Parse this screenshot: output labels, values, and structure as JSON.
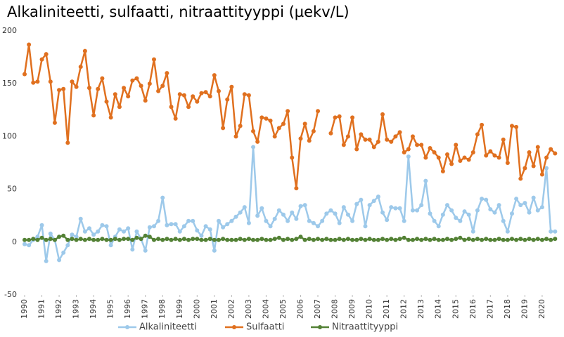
{
  "chart_data": {
    "type": "line",
    "title": "Alkaliniteetti, sulfaatti, nitraattityyppi (µekv/L)",
    "x": [
      1990,
      1990.25,
      1990.5,
      1990.75,
      1991,
      1991.25,
      1991.5,
      1991.75,
      1992,
      1992.25,
      1992.5,
      1992.75,
      1993,
      1993.25,
      1993.5,
      1993.75,
      1994,
      1994.25,
      1994.5,
      1994.75,
      1995,
      1995.25,
      1995.5,
      1995.75,
      1996,
      1996.25,
      1996.5,
      1996.75,
      1997,
      1997.25,
      1997.5,
      1997.75,
      1998,
      1998.25,
      1998.5,
      1998.75,
      1999,
      1999.25,
      1999.5,
      1999.75,
      2000,
      2000.25,
      2000.5,
      2000.75,
      2001,
      2001.25,
      2001.5,
      2001.75,
      2002,
      2002.25,
      2002.5,
      2002.75,
      2003,
      2003.25,
      2003.5,
      2003.75,
      2004,
      2004.25,
      2004.5,
      2004.75,
      2005,
      2005.25,
      2005.5,
      2005.75,
      2006,
      2006.25,
      2006.5,
      2006.75,
      2007,
      2007.25,
      2007.5,
      2007.75,
      2008,
      2008.25,
      2008.5,
      2008.75,
      2009,
      2009.25,
      2009.5,
      2009.75,
      2010,
      2010.25,
      2010.5,
      2010.75,
      2011,
      2011.25,
      2011.5,
      2011.75,
      2012,
      2012.25,
      2012.5,
      2012.75,
      2013,
      2013.25,
      2013.5,
      2013.75,
      2014,
      2014.25,
      2014.5,
      2014.75,
      2015,
      2015.25,
      2015.5,
      2015.75,
      2016,
      2016.25,
      2016.5,
      2016.75,
      2017,
      2017.25,
      2017.5,
      2017.75,
      2018,
      2018.25,
      2018.5,
      2018.75,
      2019,
      2019.25,
      2019.5,
      2019.75,
      2020,
      2020.25,
      2020.5,
      2020.75
    ],
    "series": [
      {
        "name": "Alkaliniteetti",
        "color": "#9dc9ea",
        "values": [
          -2,
          -3,
          2,
          5,
          16,
          -18,
          8,
          2,
          -17,
          -10,
          -3,
          7,
          5,
          22,
          10,
          13,
          7,
          10,
          16,
          15,
          -3,
          5,
          12,
          10,
          13,
          -7,
          10,
          3,
          -8,
          14,
          15,
          20,
          42,
          16,
          17,
          17,
          10,
          15,
          20,
          20,
          11,
          6,
          15,
          12,
          -8,
          20,
          14,
          17,
          20,
          24,
          28,
          33,
          18,
          90,
          25,
          32,
          20,
          15,
          22,
          30,
          26,
          20,
          28,
          22,
          34,
          35,
          20,
          18,
          15,
          20,
          27,
          30,
          27,
          18,
          33,
          26,
          20,
          36,
          40,
          15,
          35,
          39,
          43,
          28,
          21,
          33,
          32,
          32,
          20,
          81,
          30,
          30,
          35,
          58,
          27,
          20,
          15,
          26,
          35,
          30,
          23,
          20,
          29,
          26,
          10,
          30,
          41,
          40,
          31,
          28,
          35,
          20,
          10,
          27,
          41,
          35,
          37,
          28,
          42,
          30,
          33,
          70,
          10,
          10
        ]
      },
      {
        "name": "Sulfaatti",
        "color": "#e0701f",
        "values": [
          159,
          187,
          151,
          152,
          173,
          178,
          152,
          113,
          144,
          145,
          94,
          152,
          147,
          166,
          181,
          146,
          120,
          145,
          155,
          133,
          118,
          140,
          128,
          146,
          138,
          153,
          155,
          148,
          134,
          150,
          173,
          143,
          148,
          160,
          128,
          117,
          140,
          139,
          128,
          138,
          133,
          141,
          142,
          138,
          158,
          143,
          108,
          135,
          147,
          100,
          110,
          140,
          139,
          105,
          95,
          118,
          117,
          115,
          100,
          108,
          112,
          124,
          80,
          51,
          98,
          112,
          96,
          105,
          124,
          null,
          null,
          103,
          118,
          119,
          92,
          100,
          118,
          88,
          102,
          97,
          97,
          90,
          95,
          121,
          97,
          95,
          100,
          104,
          85,
          88,
          100,
          92,
          92,
          80,
          89,
          85,
          80,
          67,
          83,
          74,
          92,
          77,
          80,
          78,
          85,
          102,
          111,
          82,
          86,
          82,
          80,
          97,
          75,
          110,
          109,
          60,
          70,
          85,
          72,
          90,
          64,
          80,
          88,
          84
        ]
      },
      {
        "name": "Nitraattityyppi",
        "color": "#538135",
        "values": [
          2,
          2,
          3,
          2,
          4,
          2,
          3,
          2,
          5,
          6,
          2,
          3,
          2,
          3,
          2,
          3,
          2,
          2,
          3,
          2,
          2,
          3,
          2,
          3,
          3,
          2,
          4,
          3,
          6,
          5,
          2,
          3,
          2,
          3,
          2,
          3,
          2,
          3,
          2,
          3,
          3,
          2,
          2,
          3,
          2,
          2,
          3,
          2,
          2,
          2,
          3,
          2,
          3,
          2,
          2,
          3,
          2,
          2,
          3,
          4,
          2,
          3,
          2,
          3,
          5,
          2,
          3,
          2,
          3,
          2,
          3,
          2,
          2,
          3,
          2,
          3,
          2,
          2,
          3,
          2,
          3,
          2,
          2,
          3,
          2,
          3,
          2,
          3,
          4,
          2,
          2,
          3,
          2,
          3,
          2,
          3,
          2,
          2,
          3,
          2,
          3,
          4,
          2,
          3,
          2,
          3,
          2,
          3,
          2,
          2,
          3,
          2,
          2,
          3,
          2,
          3,
          2,
          3,
          2,
          3,
          2,
          3,
          2,
          3
        ]
      }
    ],
    "xlim": [
      1990,
      2020.9
    ],
    "xticks": [
      1990,
      1991,
      1992,
      1993,
      1994,
      1995,
      1996,
      1997,
      1998,
      1999,
      2000,
      2001,
      2002,
      2003,
      2004,
      2005,
      2006,
      2007,
      2008,
      2009,
      2010,
      2011,
      2012,
      2013,
      2014,
      2015,
      2016,
      2017,
      2018,
      2019,
      2020
    ],
    "ylim": [
      -50,
      200
    ],
    "yticks": [
      -50,
      0,
      50,
      100,
      150,
      200
    ],
    "grid": false,
    "legend": "bottom"
  }
}
